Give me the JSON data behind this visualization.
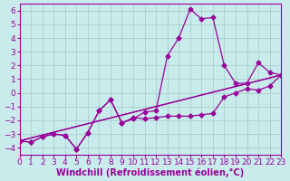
{
  "xlabel": "Windchill (Refroidissement éolien,°C)",
  "xlim": [
    0,
    23
  ],
  "ylim": [
    -4.5,
    6.5
  ],
  "xticks": [
    0,
    1,
    2,
    3,
    4,
    5,
    6,
    7,
    8,
    9,
    10,
    11,
    12,
    13,
    14,
    15,
    16,
    17,
    18,
    19,
    20,
    21,
    22,
    23
  ],
  "yticks": [
    -4,
    -3,
    -2,
    -1,
    0,
    1,
    2,
    3,
    4,
    5,
    6
  ],
  "bg_color": "#c8ecec",
  "line_color": "#990099",
  "grid_color": "#aacccc",
  "line1_x": [
    0,
    1,
    2,
    3,
    4,
    5,
    6,
    7,
    8,
    9,
    10,
    11,
    12,
    13,
    14,
    15,
    16,
    17,
    18,
    19,
    20,
    21,
    22,
    23
  ],
  "line1_y": [
    -3.5,
    -3.6,
    -3.2,
    -3.0,
    -3.1,
    -4.1,
    -2.9,
    -1.3,
    -0.5,
    -2.2,
    -1.9,
    -1.4,
    -1.3,
    2.7,
    4.0,
    6.1,
    5.4,
    5.5,
    2.0,
    0.7,
    0.7,
    2.2,
    1.5,
    1.3
  ],
  "line2_x": [
    0,
    1,
    2,
    3,
    4,
    5,
    6,
    7,
    8,
    9,
    10,
    11,
    12,
    13,
    14,
    15,
    16,
    17,
    18,
    19,
    20,
    21,
    22,
    23
  ],
  "line2_y": [
    -3.5,
    -3.6,
    -3.2,
    -3.0,
    -3.1,
    -4.1,
    -2.9,
    -1.3,
    -0.5,
    -2.2,
    -1.8,
    -1.9,
    -1.8,
    -1.7,
    -1.7,
    -1.7,
    -1.6,
    -1.5,
    -0.3,
    0.0,
    0.3,
    0.2,
    0.5,
    1.3
  ],
  "line3_x": [
    0,
    23
  ],
  "line3_y": [
    -3.5,
    1.3
  ],
  "line4_x": [
    0,
    23
  ],
  "line4_y": [
    -3.5,
    1.3
  ],
  "lw": 0.9,
  "markersize": 2.5,
  "fontsize_label": 7,
  "fontsize_tick": 6.5
}
